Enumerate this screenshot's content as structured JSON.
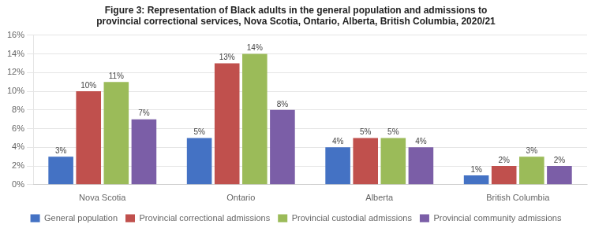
{
  "chart_data": {
    "type": "bar",
    "title": "Figure 3: Representation of Black adults in the general population and admissions to\nprovincial correctional services, Nova Scotia, Ontario, Alberta, British Columbia, 2020/21",
    "categories": [
      "Nova Scotia",
      "Ontario",
      "Alberta",
      "British Columbia"
    ],
    "series": [
      {
        "name": "General population",
        "color": "#4472C4",
        "values": [
          3,
          5,
          4,
          1
        ],
        "value_labels": [
          "3%",
          "5%",
          "4%",
          "1%"
        ]
      },
      {
        "name": "Provincial correctional admissions",
        "color": "#C0504D",
        "values": [
          10,
          13,
          5,
          2
        ],
        "value_labels": [
          "10%",
          "13%",
          "5%",
          "2%"
        ]
      },
      {
        "name": "Provincial custodial admissions",
        "color": "#9BBB59",
        "values": [
          11,
          14,
          5,
          3
        ],
        "value_labels": [
          "11%",
          "14%",
          "5%",
          "3%"
        ]
      },
      {
        "name": "Provincial community admissions",
        "color": "#7B5EA7",
        "values": [
          7,
          8,
          4,
          2
        ],
        "value_labels": [
          "7%",
          "8%",
          "4%",
          "2%"
        ]
      }
    ],
    "ylim": [
      0,
      16
    ],
    "yticks": [
      {
        "value": 0,
        "label": "0%"
      },
      {
        "value": 2,
        "label": "2%"
      },
      {
        "value": 4,
        "label": "4%"
      },
      {
        "value": 6,
        "label": "6%"
      },
      {
        "value": 8,
        "label": "8%"
      },
      {
        "value": 10,
        "label": "10%"
      },
      {
        "value": 12,
        "label": "12%"
      },
      {
        "value": 14,
        "label": "14%"
      },
      {
        "value": 16,
        "label": "16%"
      }
    ],
    "grid": true,
    "legend": "bottom",
    "data_labels": true
  }
}
